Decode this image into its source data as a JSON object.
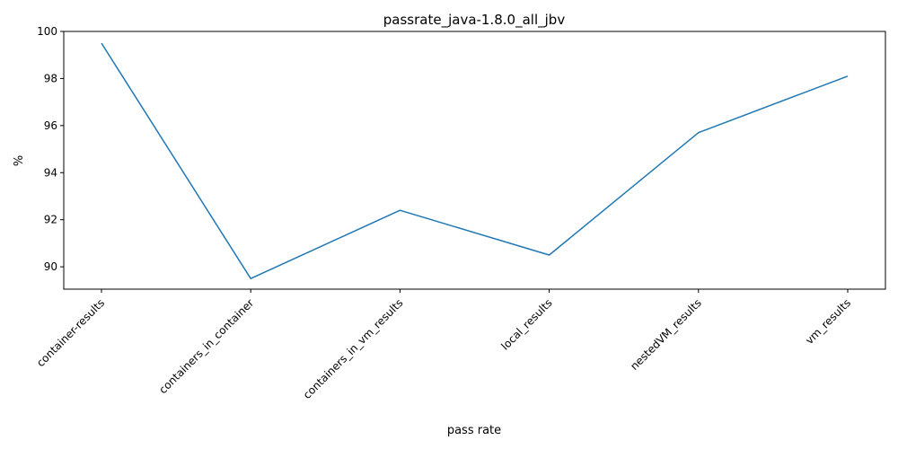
{
  "chart_data": {
    "type": "line",
    "title": "passrate_java-1.8.0_all_jbv",
    "xlabel": "pass rate",
    "ylabel": "%",
    "categories": [
      "container-results",
      "containers_in_container",
      "containers_in_vm_results",
      "local_results",
      "nestedVM_results",
      "vm_results"
    ],
    "series": [
      {
        "values": [
          99.5,
          89.5,
          92.4,
          90.5,
          95.7,
          98.1
        ],
        "color": "#1f77b4"
      }
    ],
    "ylim": [
      89.05,
      100.0
    ],
    "yticks": [
      90,
      92,
      94,
      96,
      98,
      100
    ],
    "grid": false,
    "legend": "none"
  }
}
